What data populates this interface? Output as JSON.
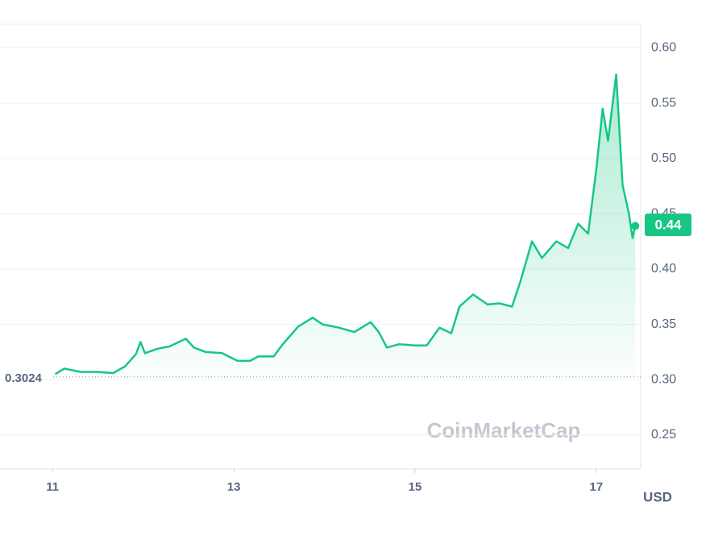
{
  "chart_data": {
    "type": "line",
    "x": [
      11.03,
      11.13,
      11.31,
      11.49,
      11.67,
      11.8,
      11.92,
      11.97,
      12.02,
      12.16,
      12.29,
      12.47,
      12.56,
      12.69,
      12.87,
      13.04,
      13.18,
      13.27,
      13.44,
      13.53,
      13.71,
      13.87,
      13.98,
      14.16,
      14.33,
      14.51,
      14.6,
      14.69,
      14.82,
      15.0,
      15.13,
      15.27,
      15.4,
      15.49,
      15.64,
      15.8,
      15.93,
      16.07,
      16.16,
      16.29,
      16.4,
      16.56,
      16.69,
      16.8,
      16.91,
      17.0,
      17.07,
      17.13,
      17.22,
      17.29,
      17.36,
      17.4,
      17.43
    ],
    "series": [
      {
        "color": "#16c784",
        "values": [
          0.305,
          0.31,
          0.307,
          0.307,
          0.306,
          0.312,
          0.323,
          0.334,
          0.324,
          0.328,
          0.33,
          0.337,
          0.329,
          0.325,
          0.324,
          0.317,
          0.317,
          0.321,
          0.321,
          0.331,
          0.348,
          0.356,
          0.35,
          0.347,
          0.343,
          0.352,
          0.343,
          0.329,
          0.332,
          0.331,
          0.331,
          0.347,
          0.342,
          0.366,
          0.377,
          0.368,
          0.369,
          0.366,
          0.388,
          0.425,
          0.41,
          0.425,
          0.419,
          0.441,
          0.432,
          0.49,
          0.545,
          0.516,
          0.576,
          0.476,
          0.45,
          0.428,
          0.439
        ]
      }
    ],
    "xlim": [
      10.42,
      17.49
    ],
    "xticks": [
      11,
      13,
      15,
      17
    ],
    "ylim": [
      0.22,
      0.62
    ],
    "yticks": [
      {
        "value": 0.25,
        "label": "0.25"
      },
      {
        "value": 0.3,
        "label": "0.30"
      },
      {
        "value": 0.35,
        "label": "0.35"
      },
      {
        "value": 0.4,
        "label": "0.40"
      },
      {
        "value": 0.45,
        "label": "0.45"
      },
      {
        "value": 0.5,
        "label": "0.50"
      },
      {
        "value": 0.55,
        "label": "0.55"
      },
      {
        "value": 0.6,
        "label": "0.60"
      }
    ],
    "grid": true,
    "reference_price": 0.3024,
    "current_price": 0.44,
    "watermark": "CoinMarketCap",
    "currency_label": "USD"
  }
}
